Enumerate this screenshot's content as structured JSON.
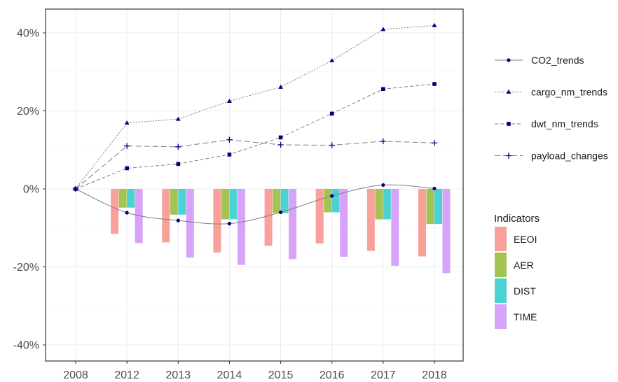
{
  "chart_data": {
    "type": "bar+line",
    "title": "",
    "xlabel": "",
    "ylabel": "",
    "categories": [
      "2008",
      "2012",
      "2013",
      "2014",
      "2015",
      "2016",
      "2017",
      "2018"
    ],
    "ylim": [
      -45,
      45
    ],
    "y_ticks": [
      -40,
      -20,
      0,
      20,
      40
    ],
    "y_tick_labels": [
      "-40%",
      "-20%",
      "0%",
      "20%",
      "40%"
    ],
    "grid": true,
    "bar_series": [
      {
        "name": "EEOI",
        "color": "#F8A19A",
        "values": [
          0,
          -11.5,
          -13.7,
          -16.3,
          -14.6,
          -14.0,
          -15.9,
          -17.3
        ]
      },
      {
        "name": "AER",
        "color": "#A3C452",
        "values": [
          0,
          -4.8,
          -6.6,
          -7.8,
          -6.2,
          -6.0,
          -7.8,
          -9.0
        ]
      },
      {
        "name": "DIST",
        "color": "#4DD2D4",
        "values": [
          0,
          -4.8,
          -6.6,
          -7.8,
          -6.2,
          -6.0,
          -7.8,
          -9.0
        ]
      },
      {
        "name": "TIME",
        "color": "#D6A3F8",
        "values": [
          0,
          -13.9,
          -17.6,
          -19.5,
          -18.0,
          -17.4,
          -19.7,
          -21.6
        ]
      }
    ],
    "bar_legend_title": "Indicators",
    "line_series": [
      {
        "name": "CO2_trends",
        "marker": "circle",
        "dash": "solid",
        "color": "#7f7f7f",
        "values": [
          0,
          -6.1,
          -8.1,
          -8.9,
          -6.0,
          -1.8,
          1.0,
          0.1
        ]
      },
      {
        "name": "cargo_nm_trends",
        "marker": "triangle",
        "dash": "dotted",
        "color": "#7f7f7f",
        "values": [
          0,
          16.9,
          17.9,
          22.5,
          26.1,
          32.9,
          40.9,
          41.9
        ]
      },
      {
        "name": "dwt_nm_trends",
        "marker": "square",
        "dash": "dashed",
        "color": "#7f7f7f",
        "values": [
          0,
          5.3,
          6.4,
          8.8,
          13.2,
          19.3,
          25.6,
          26.9
        ]
      },
      {
        "name": "payload_changes",
        "marker": "plus",
        "dash": "longdash",
        "color": "#7f7f7f",
        "values": [
          0,
          11.0,
          10.8,
          12.6,
          11.3,
          11.2,
          12.2,
          11.8
        ]
      }
    ],
    "marker_color": "#000080",
    "legend_position": "right"
  }
}
